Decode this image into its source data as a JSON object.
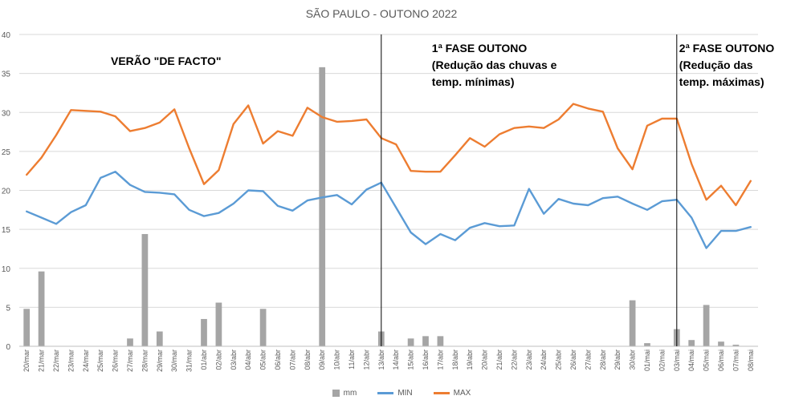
{
  "chart_data": {
    "type": "bar-line",
    "title": "SÃO PAULO - OUTONO 2022",
    "ylim": [
      0,
      40
    ],
    "y_ticks": [
      "0",
      "5",
      "10",
      "15",
      "20",
      "25",
      "30",
      "35",
      "40"
    ],
    "grid": "horizontal",
    "legend_position": "bottom",
    "categories": [
      "20/mar",
      "21/mar",
      "22/mar",
      "23/mar",
      "24/mar",
      "25/mar",
      "26/mar",
      "27/mar",
      "28/mar",
      "29/mar",
      "30/mar",
      "31/mar",
      "01/abr",
      "02/abr",
      "03/abr",
      "04/abr",
      "05/abr",
      "06/abr",
      "07/abr",
      "08/abr",
      "09/abr",
      "10/abr",
      "11/abr",
      "12/abr",
      "13/abr",
      "14/abr",
      "15/abr",
      "16/abr",
      "17/abr",
      "18/abr",
      "19/abr",
      "20/abr",
      "21/abr",
      "22/abr",
      "23/abr",
      "24/abr",
      "25/abr",
      "26/abr",
      "27/abr",
      "28/abr",
      "29/abr",
      "30/abr",
      "01/mai",
      "02/mai",
      "03/mai",
      "04/mai",
      "05/mai",
      "06/mai",
      "07/mai",
      "08/mai"
    ],
    "series": [
      {
        "name": "mm",
        "kind": "bar",
        "color": "#a5a5a5",
        "values": [
          4.8,
          9.6,
          0,
          0,
          0,
          0,
          0,
          1.0,
          14.4,
          1.9,
          0,
          0,
          3.5,
          5.6,
          0,
          0,
          4.8,
          0,
          0,
          0,
          35.8,
          0,
          0,
          0,
          1.9,
          0,
          1.0,
          1.3,
          1.3,
          0,
          0,
          0,
          0,
          0,
          0,
          0,
          0,
          0,
          0,
          0,
          0,
          5.9,
          0.4,
          0,
          2.2,
          0.8,
          5.3,
          0.6,
          0.2,
          0
        ]
      },
      {
        "name": "MIN",
        "kind": "line",
        "color": "#5b9bd5",
        "values": [
          17.3,
          16.5,
          15.7,
          17.2,
          18.1,
          21.6,
          22.4,
          20.7,
          19.8,
          19.7,
          19.5,
          17.5,
          16.7,
          17.1,
          18.3,
          20.0,
          19.9,
          18.0,
          17.4,
          18.7,
          19.1,
          19.4,
          18.2,
          20.1,
          21.0,
          17.8,
          14.6,
          13.1,
          14.4,
          13.6,
          15.2,
          15.8,
          15.4,
          15.5,
          20.2,
          17.0,
          18.9,
          18.3,
          18.1,
          19.0,
          19.2,
          18.3,
          17.5,
          18.6,
          18.8,
          16.5,
          12.6,
          14.8,
          14.8,
          15.3
        ]
      },
      {
        "name": "MAX",
        "kind": "line",
        "color": "#ed7d31",
        "values": [
          22.0,
          24.2,
          27.1,
          30.3,
          30.2,
          30.1,
          29.5,
          27.6,
          28.0,
          28.7,
          30.4,
          25.4,
          20.8,
          22.6,
          28.5,
          30.9,
          26.0,
          27.6,
          27.0,
          30.6,
          29.4,
          28.8,
          28.9,
          29.1,
          26.7,
          25.9,
          22.5,
          22.4,
          22.4,
          24.5,
          26.7,
          25.6,
          27.2,
          28.0,
          28.2,
          28.0,
          29.1,
          31.1,
          30.5,
          30.1,
          25.4,
          22.7,
          28.3,
          29.2,
          29.2,
          23.4,
          18.8,
          20.6,
          18.1,
          21.2
        ]
      }
    ],
    "vertical_markers": [
      {
        "category": "13/abr",
        "label": "1ª FASE OUTONO",
        "note_lines": [
          "(Redução das chuvas e",
          "temp. mínimas)"
        ]
      },
      {
        "category": "03/mai",
        "label": "2ª FASE OUTONO",
        "note_lines": [
          "(Redução das",
          "temp. máximas)"
        ]
      }
    ],
    "annotations": [
      {
        "text": "VERÃO \"DE FACTO\"",
        "region": "early-period"
      }
    ]
  }
}
